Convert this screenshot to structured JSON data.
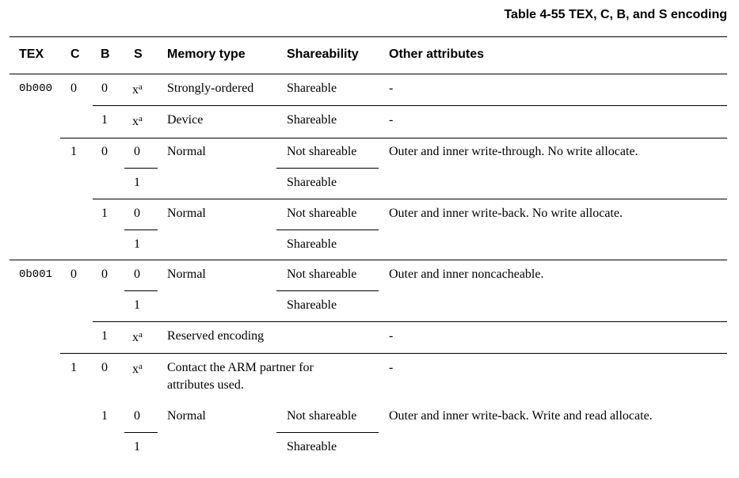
{
  "caption": "Table 4-55 TEX, C, B, and S encoding",
  "headers": {
    "tex": "TEX",
    "c": "C",
    "b": "B",
    "s": "S",
    "memory_type": "Memory type",
    "shareability": "Shareability",
    "other": "Other attributes"
  },
  "cells": {
    "tex_0b000": "0b000",
    "tex_0b001": "0b001",
    "x": "x",
    "note": "a",
    "zero": "0",
    "one": "1",
    "dash": "-",
    "strongly_ordered": "Strongly-ordered",
    "device": "Device",
    "normal": "Normal",
    "reserved_encoding": "Reserved encoding",
    "contact_arm": "Contact the ARM partner for attributes used.",
    "shareable": "Shareable",
    "not_shareable": "Not shareable",
    "wt_no_alloc": "Outer and inner write-through. No write allocate.",
    "wb_no_alloc": "Outer and inner write-back. No write allocate.",
    "noncacheable": "Outer and inner noncacheable.",
    "wb_rw_alloc": "Outer and inner write-back. Write and read allocate."
  }
}
